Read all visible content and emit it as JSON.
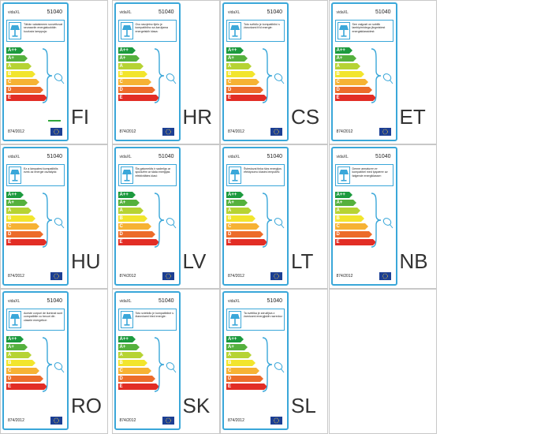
{
  "brand": "vidaXL",
  "model": "51040",
  "regulation": "874/2012",
  "classes": [
    "A++",
    "A+",
    "A",
    "B",
    "C",
    "D",
    "E"
  ],
  "class_colors": [
    "#1c9a3e",
    "#55b13d",
    "#b6d334",
    "#f2e52d",
    "#f6b234",
    "#ec6c2a",
    "#e22d25"
  ],
  "labels": [
    {
      "lang": "FI",
      "text": "Tähän valaisimeen sovveltuvat seuraaviin energialuokkiin kuuluvia lamppuja:",
      "green_mark": true
    },
    {
      "lang": "HR",
      "text": "Ovo rasvjetno tijelo je kompatibilno sa žaruljama energetskih klasa:",
      "green_mark": false
    },
    {
      "lang": "CS",
      "text": "Toto svítidlo je kompatibilní s žárovkami tříd energie:",
      "green_mark": false
    },
    {
      "lang": "ET",
      "text": "See valgusti on sobilik lambipirnidega järgmistest energiaklassidest:",
      "green_mark": false
    },
    {
      "lang": "HU",
      "text": "Ez a lámpatest kompatibilis ezek az energie osztályok:",
      "green_mark": false
    },
    {
      "lang": "LV",
      "text": "Šis gaismeklis ir saderīgs ar spuldzēm ar šāda enerģijas efektivitātes klasi:",
      "green_mark": false
    },
    {
      "lang": "LT",
      "text": "Šviestuvai tinka šios energijos efektyvumo klasės lemputės:",
      "green_mark": false
    },
    {
      "lang": "NB",
      "text": "Denne armaturen er kompatibel med lyspærer av følgende energiklasser:",
      "green_mark": false
    },
    {
      "lang": "RO",
      "text": "Aceste corpuri de iluminat sunt compatibile cu becuri din clasele energetice:",
      "green_mark": false
    },
    {
      "lang": "SK",
      "text": "Toto svietidlo je kompatibilné s žiarovkami tried energie:",
      "green_mark": false
    },
    {
      "lang": "SL",
      "text": "Ta svetilka je združljiva z žarnicami energijskih razredov:",
      "green_mark": false
    }
  ]
}
